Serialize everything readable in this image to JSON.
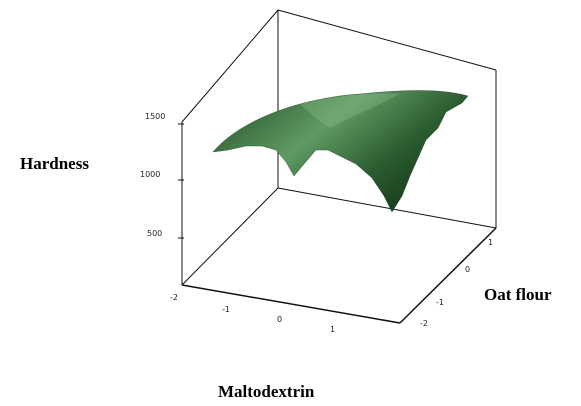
{
  "chart_data": {
    "type": "surface",
    "title": "",
    "xlabel": "Maltodextrin",
    "ylabel": "Oat flour",
    "zlabel": "Hardness",
    "x_ticks": [
      "-2",
      "-1",
      "0",
      "1"
    ],
    "y_ticks": [
      "-2",
      "-1",
      "0",
      "1"
    ],
    "z_ticks": [
      "500",
      "1000",
      "1500"
    ],
    "xlim": [
      -2,
      2
    ],
    "ylim": [
      -2,
      2
    ],
    "zlim": [
      0,
      1700
    ],
    "grid": false,
    "surface_color": "#3f7a45",
    "surface": {
      "x": [
        -2,
        -1,
        0,
        1,
        2
      ],
      "y": [
        -2,
        -1,
        0,
        1,
        2
      ],
      "z": [
        [
          1340,
          1180,
          1010,
          740,
          300
        ],
        [
          1380,
          1300,
          1160,
          900,
          480
        ],
        [
          1280,
          1340,
          1260,
          1050,
          720
        ],
        [
          1150,
          1280,
          1320,
          1180,
          980
        ],
        [
          950,
          1120,
          1200,
          1360,
          1500
        ]
      ]
    }
  }
}
